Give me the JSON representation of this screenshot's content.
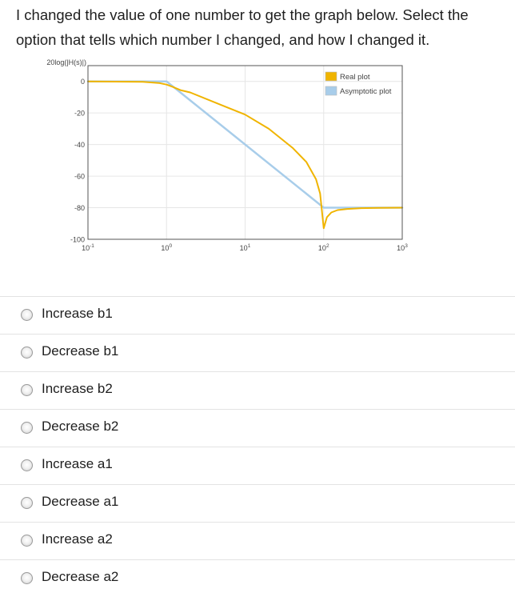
{
  "question": "I changed the value of one number to get the graph below.  Select the option that tells which number I changed, and how I changed it.",
  "chart_data": {
    "type": "line",
    "ylabel": "20log(|H(s)|)",
    "xscale": "log",
    "xlim": [
      0.1,
      1000
    ],
    "ylim": [
      -100,
      10
    ],
    "yticks": [
      0,
      -20,
      -40,
      -60,
      -80,
      -100
    ],
    "xticks": [
      {
        "value": 0.1,
        "base": "10",
        "exp": "-1"
      },
      {
        "value": 1,
        "base": "10",
        "exp": "0"
      },
      {
        "value": 10,
        "base": "10",
        "exp": "1"
      },
      {
        "value": 100,
        "base": "10",
        "exp": "2"
      },
      {
        "value": 1000,
        "base": "10",
        "exp": "3"
      }
    ],
    "grid": true,
    "legend_position": "top-right",
    "series": [
      {
        "name": "Real plot",
        "color": "#f0b400",
        "x": [
          0.1,
          0.5,
          0.8,
          1,
          1.2,
          1.5,
          2,
          5,
          10,
          20,
          40,
          60,
          80,
          90,
          100,
          110,
          125,
          150,
          200,
          300,
          500,
          1000
        ],
        "y": [
          0,
          -0.3,
          -1,
          -2,
          -3.5,
          -5.5,
          -7,
          -15,
          -21,
          -30,
          -42,
          -51,
          -62,
          -71,
          -93,
          -86,
          -83,
          -81.5,
          -80.8,
          -80.3,
          -80.1,
          -80
        ]
      },
      {
        "name": "Asymptotic plot",
        "color": "#a8cdea",
        "x": [
          0.1,
          1,
          100,
          1000
        ],
        "y": [
          0,
          0,
          -80,
          -80
        ]
      }
    ]
  },
  "options": [
    {
      "label": "Increase b1"
    },
    {
      "label": "Decrease b1"
    },
    {
      "label": "Increase b2"
    },
    {
      "label": "Decrease b2"
    },
    {
      "label": "Increase a1"
    },
    {
      "label": "Decrease a1"
    },
    {
      "label": "Increase a2"
    },
    {
      "label": "Decrease a2"
    }
  ]
}
